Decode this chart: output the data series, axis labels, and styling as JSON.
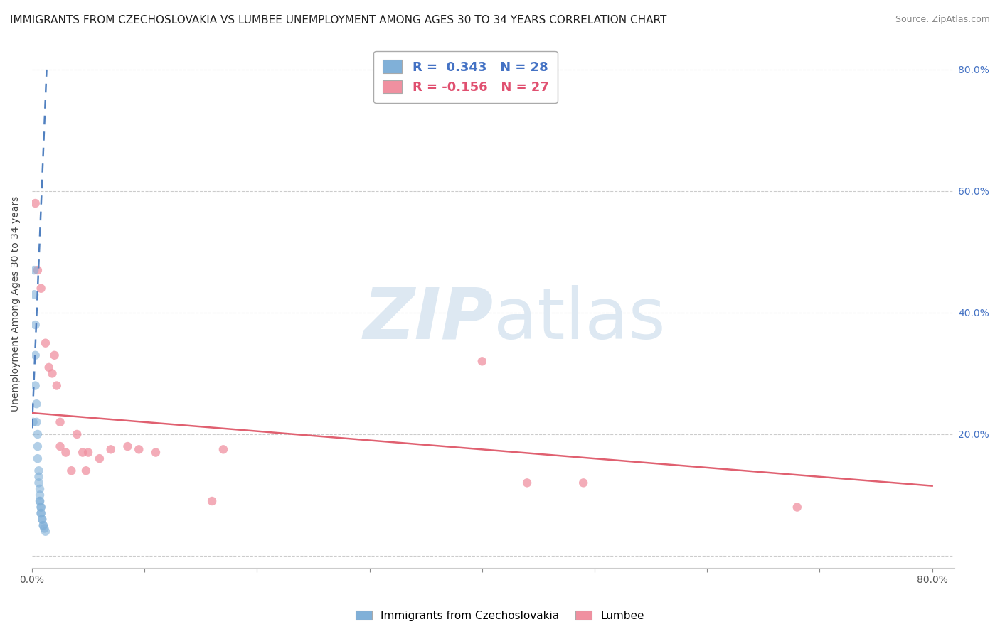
{
  "title": "IMMIGRANTS FROM CZECHOSLOVAKIA VS LUMBEE UNEMPLOYMENT AMONG AGES 30 TO 34 YEARS CORRELATION CHART",
  "source": "Source: ZipAtlas.com",
  "ylabel": "Unemployment Among Ages 30 to 34 years",
  "legend_entries": [
    {
      "color": "#8ab4d8",
      "label": "Immigrants from Czechoslovakia"
    },
    {
      "color": "#f090a0",
      "label": "Lumbee"
    }
  ],
  "r_blue": 0.343,
  "n_blue": 28,
  "r_pink": -0.156,
  "n_pink": 27,
  "blue_scatter": [
    [
      0.001,
      0.22
    ],
    [
      0.002,
      0.47
    ],
    [
      0.002,
      0.43
    ],
    [
      0.003,
      0.38
    ],
    [
      0.003,
      0.33
    ],
    [
      0.003,
      0.28
    ],
    [
      0.004,
      0.25
    ],
    [
      0.004,
      0.22
    ],
    [
      0.005,
      0.2
    ],
    [
      0.005,
      0.18
    ],
    [
      0.005,
      0.16
    ],
    [
      0.006,
      0.14
    ],
    [
      0.006,
      0.13
    ],
    [
      0.006,
      0.12
    ],
    [
      0.007,
      0.11
    ],
    [
      0.007,
      0.1
    ],
    [
      0.007,
      0.09
    ],
    [
      0.007,
      0.09
    ],
    [
      0.008,
      0.08
    ],
    [
      0.008,
      0.08
    ],
    [
      0.008,
      0.07
    ],
    [
      0.008,
      0.07
    ],
    [
      0.009,
      0.06
    ],
    [
      0.009,
      0.06
    ],
    [
      0.01,
      0.05
    ],
    [
      0.01,
      0.05
    ],
    [
      0.011,
      0.045
    ],
    [
      0.012,
      0.04
    ]
  ],
  "pink_scatter": [
    [
      0.003,
      0.58
    ],
    [
      0.005,
      0.47
    ],
    [
      0.008,
      0.44
    ],
    [
      0.012,
      0.35
    ],
    [
      0.015,
      0.31
    ],
    [
      0.018,
      0.3
    ],
    [
      0.02,
      0.33
    ],
    [
      0.022,
      0.28
    ],
    [
      0.025,
      0.22
    ],
    [
      0.025,
      0.18
    ],
    [
      0.03,
      0.17
    ],
    [
      0.035,
      0.14
    ],
    [
      0.04,
      0.2
    ],
    [
      0.045,
      0.17
    ],
    [
      0.048,
      0.14
    ],
    [
      0.05,
      0.17
    ],
    [
      0.06,
      0.16
    ],
    [
      0.07,
      0.175
    ],
    [
      0.085,
      0.18
    ],
    [
      0.095,
      0.175
    ],
    [
      0.11,
      0.17
    ],
    [
      0.16,
      0.09
    ],
    [
      0.17,
      0.175
    ],
    [
      0.4,
      0.32
    ],
    [
      0.44,
      0.12
    ],
    [
      0.49,
      0.12
    ],
    [
      0.68,
      0.08
    ]
  ],
  "blue_line_x": [
    0.0,
    0.013
  ],
  "blue_line_y": [
    0.21,
    0.8
  ],
  "pink_line_x": [
    0.0,
    0.8
  ],
  "pink_line_y": [
    0.235,
    0.115
  ],
  "watermark_top": "ZIP",
  "watermark_bottom": "atlas",
  "watermark_color": "#dde8f2",
  "background_color": "#ffffff",
  "grid_color": "#cccccc",
  "title_fontsize": 11,
  "source_fontsize": 9,
  "ylabel_fontsize": 10,
  "scatter_size": 80,
  "blue_color": "#80b0d8",
  "pink_color": "#f090a0",
  "blue_line_color": "#5080c0",
  "pink_line_color": "#e06070",
  "xlim": [
    0.0,
    0.82
  ],
  "ylim": [
    -0.02,
    0.85
  ]
}
